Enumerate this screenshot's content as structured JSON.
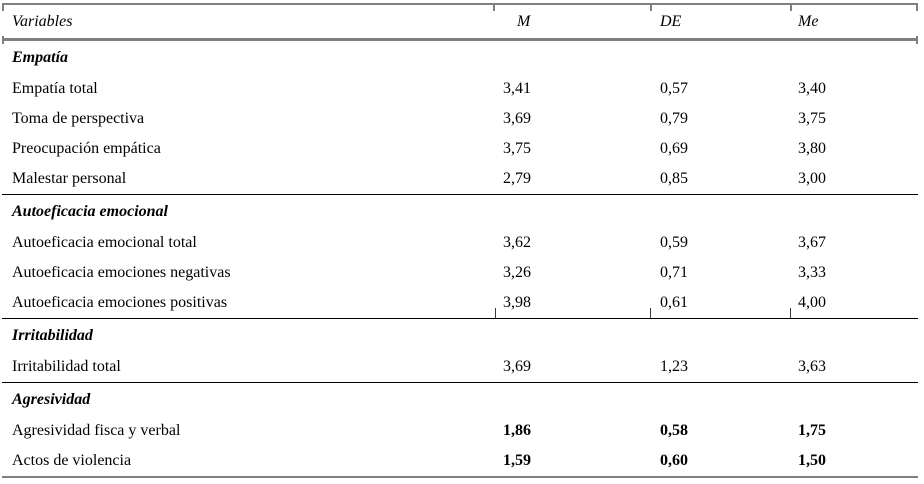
{
  "table": {
    "columns": [
      "Variables",
      "M",
      "DE",
      "Me"
    ],
    "sections": [
      {
        "header": "Empatía",
        "rows": [
          {
            "label": "Empatía total",
            "m": "3,41",
            "de": "0,57",
            "me": "3,40"
          },
          {
            "label": "Toma de perspectiva",
            "m": "3,69",
            "de": "0,79",
            "me": "3,75"
          },
          {
            "label": "Preocupación empática",
            "m": "3,75",
            "de": "0,69",
            "me": "3,80"
          },
          {
            "label": "Malestar personal",
            "m": "2,79",
            "de": "0,85",
            "me": "3,00"
          }
        ]
      },
      {
        "header": "Autoeficacia emocional",
        "rows": [
          {
            "label": "Autoeficacia emocional total",
            "m": "3,62",
            "de": "0,59",
            "me": "3,67"
          },
          {
            "label": "Autoeficacia emociones negativas",
            "m": "3,26",
            "de": "0,71",
            "me": "3,33"
          },
          {
            "label": "Autoeficacia emociones positivas",
            "m": "3,98",
            "de": "0,61",
            "me": "4,00"
          }
        ]
      },
      {
        "header": "Irritabilidad",
        "rows": [
          {
            "label": "Irritabilidad total",
            "m": "3,69",
            "de": "1,23",
            "me": "3,63"
          }
        ]
      },
      {
        "header": "Agresividad",
        "rows": [
          {
            "label": "Agresividad fisca y verbal",
            "m": "1,86",
            "de": "0,58",
            "me": "1,75",
            "bold": true
          },
          {
            "label": "Actos de violencia",
            "m": "1,59",
            "de": "0,60",
            "me": "1,50",
            "bold": true
          }
        ]
      }
    ]
  },
  "colors": {
    "outer_border_gray": "#808080",
    "section_divider_black": "#000000",
    "text": "#000000",
    "background": "#ffffff"
  }
}
